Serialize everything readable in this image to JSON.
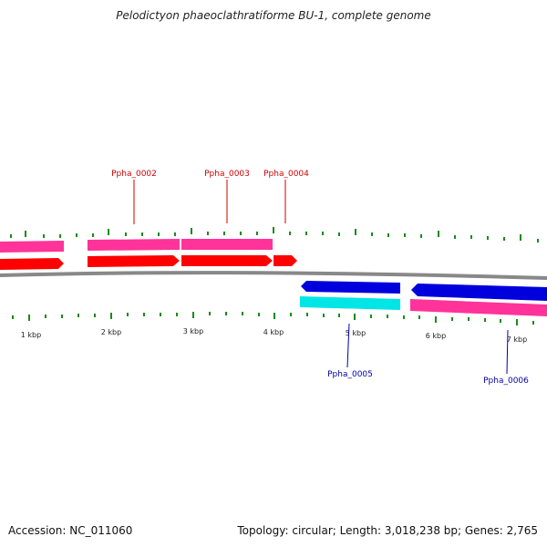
{
  "title": "Pelodictyon phaeoclathratiforme BU-1, complete genome",
  "footer": {
    "accession": "Accession: NC_011060",
    "summary": "Topology: circular; Length: 3,018,238 bp; Genes: 2,765"
  },
  "colors": {
    "forward_cds": "#ff0000",
    "forward_gene": "#ff3399",
    "reverse_cds": "#0000dd",
    "reverse_gene_a": "#00e5e5",
    "reverse_gene_b": "#ff3399",
    "backbone": "#888888",
    "ticks": "#1a8a1a",
    "forward_label": "#cc0000",
    "reverse_label": "#0000aa"
  },
  "kbp_labels": [
    "1 kbp",
    "2 kbp",
    "3 kbp",
    "4 kbp",
    "5 kbp",
    "6 kbp",
    "7 kbp"
  ],
  "gene_labels": {
    "forward": [
      "Ppha_0002",
      "Ppha_0003",
      "Ppha_0004"
    ],
    "reverse": [
      "Ppha_0005",
      "Ppha_0006"
    ]
  }
}
